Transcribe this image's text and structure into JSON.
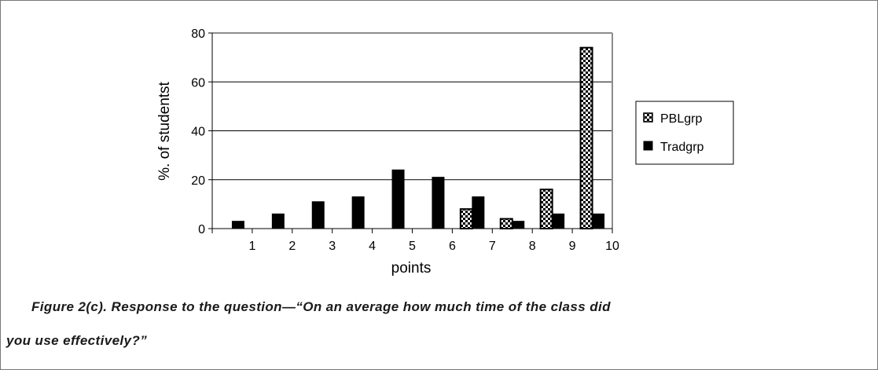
{
  "chart_data": {
    "type": "bar",
    "title": "",
    "xlabel": "points",
    "ylabel": "%. of studentst",
    "ylim": [
      0,
      80
    ],
    "yticks": [
      "0",
      "20",
      "40",
      "60",
      "80"
    ],
    "xticks": [
      "1",
      "2",
      "3",
      "4",
      "5",
      "6",
      "7",
      "8",
      "9",
      "10"
    ],
    "grid": true,
    "legend_position": "right",
    "series": [
      {
        "name": "PBLgrp",
        "pattern": "checkered",
        "color": "#000000",
        "values": [
          0,
          0,
          0,
          0,
          0,
          0,
          8,
          4,
          16,
          74
        ]
      },
      {
        "name": "Tradgrp",
        "pattern": "solid",
        "color": "#000000",
        "values": [
          3,
          6,
          11,
          13,
          24,
          21,
          13,
          3,
          6,
          6
        ]
      }
    ]
  },
  "caption": {
    "line1": "Figure 2(c). Response to the question—“On an average how much time of the class did",
    "line2": "you use effectively?”"
  }
}
